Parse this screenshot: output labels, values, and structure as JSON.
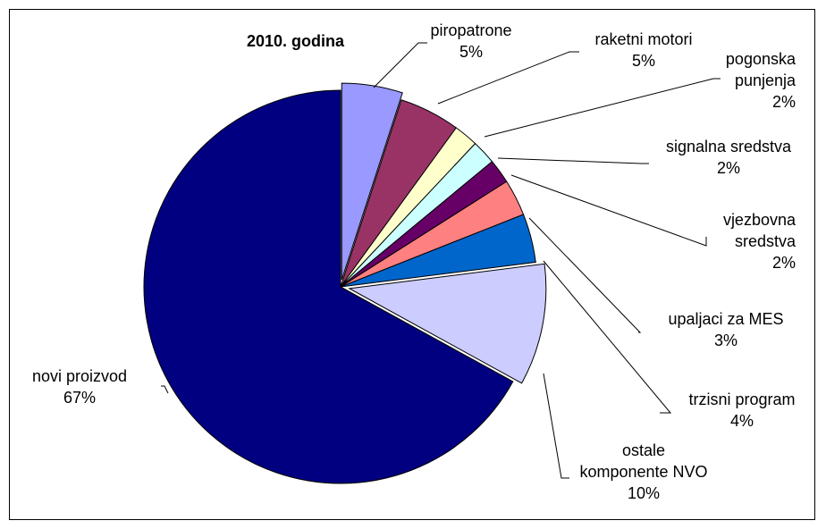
{
  "chart_data": {
    "type": "pie",
    "title": "2010. godina",
    "slices": [
      {
        "label": [
          "piropatrone"
        ],
        "pct_text": "5%",
        "value": 5,
        "color": "#9999ff"
      },
      {
        "label": [
          "raketni motori"
        ],
        "pct_text": "5%",
        "value": 5,
        "color": "#993366"
      },
      {
        "label": [
          "pogonska",
          "punjenja"
        ],
        "pct_text": "2%",
        "value": 2,
        "color": "#ffffcc"
      },
      {
        "label": [
          "signalna sredstva"
        ],
        "pct_text": "2%",
        "value": 2,
        "color": "#ccffff"
      },
      {
        "label": [
          "vjezbovna",
          "sredstva"
        ],
        "pct_text": "2%",
        "value": 2,
        "color": "#660066"
      },
      {
        "label": [
          "upaljaci za MES"
        ],
        "pct_text": "3%",
        "value": 3,
        "color": "#ff8080"
      },
      {
        "label": [
          "trzisni program"
        ],
        "pct_text": "4%",
        "value": 4,
        "color": "#0066cc"
      },
      {
        "label": [
          "ostale",
          "komponente NVO"
        ],
        "pct_text": "10%",
        "value": 10,
        "color": "#ccccff"
      },
      {
        "label": [
          "novi proizvod"
        ],
        "pct_text": "67%",
        "value": 67,
        "color": "#000080"
      }
    ]
  }
}
